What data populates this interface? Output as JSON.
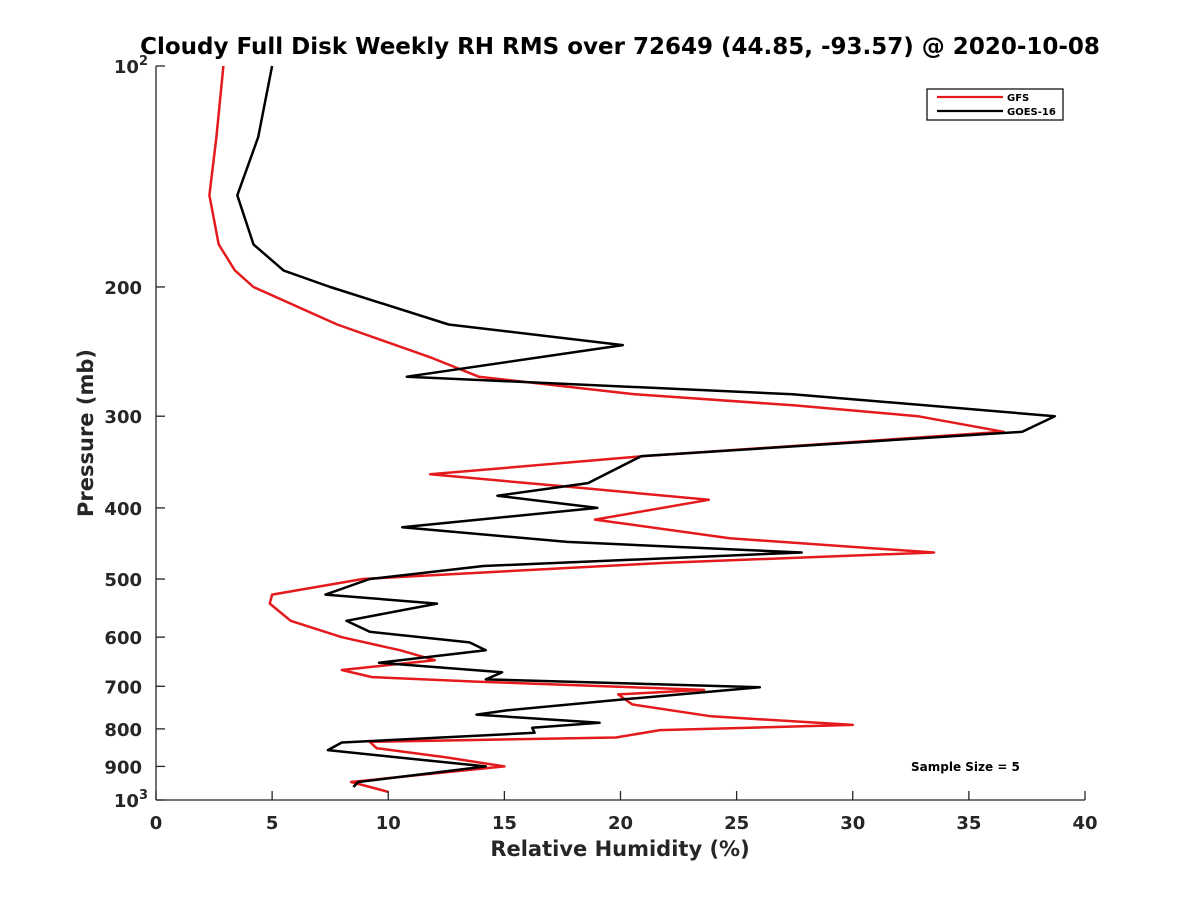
{
  "chart_data": {
    "type": "line",
    "title": "Cloudy Full Disk Weekly RH RMS over 72649 (44.85, -93.57) @ 2020-10-08",
    "xlabel": "Relative Humidity (%)",
    "ylabel": "Pressure (mb)",
    "xlim": [
      0,
      40
    ],
    "ylim": [
      100,
      1000
    ],
    "y_scale": "log",
    "y_reversed": true,
    "x_ticks": [
      "0",
      "5",
      "10",
      "15",
      "20",
      "25",
      "30",
      "35",
      "40"
    ],
    "x_tick_values": [
      0,
      5,
      10,
      15,
      20,
      25,
      30,
      35,
      40
    ],
    "y_ticks": [
      {
        "value": 100,
        "base": "10",
        "exp": "2"
      },
      {
        "value": 200,
        "label": "200"
      },
      {
        "value": 300,
        "label": "300"
      },
      {
        "value": 400,
        "label": "400"
      },
      {
        "value": 500,
        "label": "500"
      },
      {
        "value": 600,
        "label": "600"
      },
      {
        "value": 700,
        "label": "700"
      },
      {
        "value": 800,
        "label": "800"
      },
      {
        "value": 900,
        "label": "900"
      },
      {
        "value": 1000,
        "base": "10",
        "exp": "3"
      }
    ],
    "grid": false,
    "legend_position": "top-right",
    "annotation": "Sample Size = 5",
    "series": [
      {
        "name": "GFS",
        "color": "#e41a1c",
        "points": [
          [
            2.9,
            100
          ],
          [
            2.6,
            125
          ],
          [
            2.3,
            150
          ],
          [
            2.7,
            175
          ],
          [
            3.4,
            190
          ],
          [
            4.2,
            200
          ],
          [
            7.8,
            225
          ],
          [
            11.9,
            250
          ],
          [
            13.9,
            265
          ],
          [
            20.6,
            280
          ],
          [
            27.5,
            290
          ],
          [
            32.8,
            300
          ],
          [
            36.5,
            315
          ],
          [
            21,
            340
          ],
          [
            11.8,
            360
          ],
          [
            18,
            375
          ],
          [
            23.8,
            390
          ],
          [
            18.9,
            415
          ],
          [
            24.7,
            440
          ],
          [
            33.5,
            460
          ],
          [
            22,
            475
          ],
          [
            14,
            490
          ],
          [
            8.9,
            500
          ],
          [
            5,
            525
          ],
          [
            4.9,
            540
          ],
          [
            5.8,
            570
          ],
          [
            8,
            600
          ],
          [
            10.5,
            625
          ],
          [
            12,
            645
          ],
          [
            8,
            665
          ],
          [
            9.3,
            680
          ],
          [
            13.9,
            690
          ],
          [
            23.6,
            708
          ],
          [
            19.9,
            718
          ],
          [
            20.5,
            741
          ],
          [
            23.9,
            769
          ],
          [
            30,
            790
          ],
          [
            21.7,
            803
          ],
          [
            19.8,
            822
          ],
          [
            9.2,
            833
          ],
          [
            9.5,
            850
          ],
          [
            12.5,
            875
          ],
          [
            15,
            900
          ],
          [
            12,
            920
          ],
          [
            8.4,
            945
          ],
          [
            10,
            975
          ]
        ]
      },
      {
        "name": "GOES-16",
        "color": "#000000",
        "points": [
          [
            5.0,
            100
          ],
          [
            4.4,
            125
          ],
          [
            3.5,
            150
          ],
          [
            4.2,
            175
          ],
          [
            5.5,
            190
          ],
          [
            7.5,
            200
          ],
          [
            12.6,
            225
          ],
          [
            20.1,
            240
          ],
          [
            10.8,
            265
          ],
          [
            27.4,
            280
          ],
          [
            38.7,
            300
          ],
          [
            37.3,
            315
          ],
          [
            20.9,
            340
          ],
          [
            18.6,
            370
          ],
          [
            14.7,
            385
          ],
          [
            19,
            400
          ],
          [
            10.6,
            425
          ],
          [
            17.7,
            445
          ],
          [
            27.8,
            460
          ],
          [
            14.1,
            480
          ],
          [
            9.2,
            500
          ],
          [
            7.3,
            525
          ],
          [
            12.1,
            540
          ],
          [
            8.2,
            570
          ],
          [
            9.2,
            590
          ],
          [
            13.5,
            610
          ],
          [
            14.2,
            625
          ],
          [
            9.6,
            650
          ],
          [
            14.9,
            670
          ],
          [
            14.2,
            685
          ],
          [
            26,
            702
          ],
          [
            20.4,
            728
          ],
          [
            15.1,
            755
          ],
          [
            13.8,
            765
          ],
          [
            19.1,
            785
          ],
          [
            16.2,
            797
          ],
          [
            16.3,
            810
          ],
          [
            8.0,
            835
          ],
          [
            7.4,
            855
          ],
          [
            10.4,
            875
          ],
          [
            14.2,
            900
          ],
          [
            8.7,
            945
          ],
          [
            8.5,
            960
          ]
        ]
      }
    ]
  }
}
